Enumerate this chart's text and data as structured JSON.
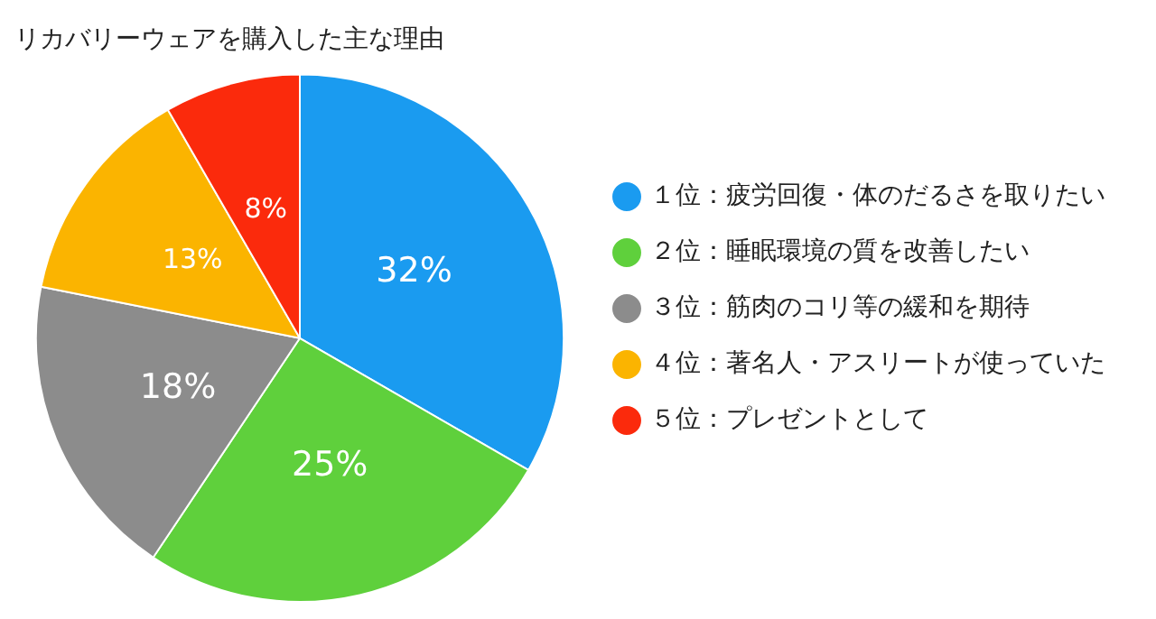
{
  "chart_data": {
    "type": "pie",
    "title": "リカバリーウェアを購入した主な理由",
    "categories": [
      "１位：疲労回復・体のだるさを取りたい",
      "２位：睡眠環境の質を改善したい",
      "３位：筋肉のコリ等の緩和を期待",
      "４位：著名人・アスリートが使っていた",
      "５位：プレゼントとして"
    ],
    "values": [
      32,
      25,
      18,
      13,
      8
    ],
    "colors": [
      "#1a9bf0",
      "#5fd03c",
      "#8c8c8c",
      "#fbb400",
      "#fb2a0c"
    ],
    "value_labels": [
      "32%",
      "25%",
      "18%",
      "13%",
      "8%"
    ],
    "legend": "right"
  }
}
